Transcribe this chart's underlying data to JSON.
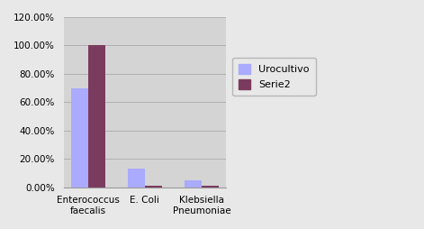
{
  "categories": [
    "Enterococcus\nfaecalis",
    "E. Coli",
    "Klebsiella\nPneumoniae"
  ],
  "series1_name": "Urocultivo",
  "series2_name": "Serie2",
  "series1_values": [
    0.7,
    0.13,
    0.05
  ],
  "series2_values": [
    1.0,
    0.01,
    0.01
  ],
  "series1_color": "#aaaaff",
  "series2_color": "#7b3b5e",
  "plot_bg_color": "#d4d4d4",
  "fig_bg_color": "#e8e8e8",
  "ylim": [
    0,
    1.2
  ],
  "yticks": [
    0.0,
    0.2,
    0.4,
    0.6,
    0.8,
    1.0,
    1.2
  ],
  "ytick_labels": [
    "0.00%",
    "20.00%",
    "40.00%",
    "60.00%",
    "80.00%",
    "100.00%",
    "120.00%"
  ],
  "bar_width": 0.3,
  "grid_color": "#b0b0b0",
  "legend_facecolor": "#e8e8e8"
}
